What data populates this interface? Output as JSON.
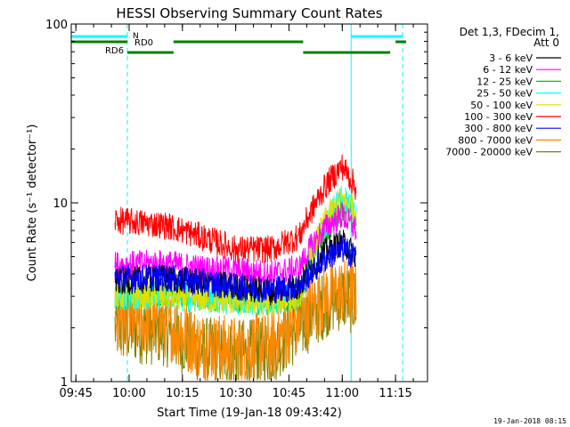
{
  "chart_data": {
    "type": "line",
    "title": "HESSI Observing Summary Count Rates",
    "xlabel": "Start Time (19-Jan-18 09:43:42)",
    "ylabel": "Count Rate (s⁻¹ detector⁻¹)",
    "y_scale": "log",
    "ylim": [
      1,
      100
    ],
    "xlim": [
      "09:43:42",
      "11:24:00"
    ],
    "x_ticks": [
      "09:45",
      "10:00",
      "10:15",
      "10:30",
      "10:45",
      "11:00",
      "11:15"
    ],
    "y_ticks": [
      "1",
      "10",
      "100"
    ],
    "grid": false,
    "legend_placement": "right",
    "legend_title": [
      "Det 1,3, FDecim 1,",
      "Att 0"
    ],
    "series": [
      {
        "name": "3 - 6 keV",
        "color": "#000000",
        "x": [
          "09:56",
          "10:10",
          "10:20",
          "10:30",
          "10:40",
          "10:48",
          "10:52",
          "10:56",
          "11:00",
          "11:04"
        ],
        "y": [
          3.6,
          3.8,
          3.6,
          3.4,
          3.2,
          3.4,
          4.5,
          5.5,
          6.0,
          5.0
        ]
      },
      {
        "name": "6 - 12 keV",
        "color": "#ff00ff",
        "x": [
          "09:56",
          "10:10",
          "10:20",
          "10:30",
          "10:40",
          "10:48",
          "10:52",
          "10:56",
          "11:00",
          "11:04"
        ],
        "y": [
          4.5,
          4.6,
          4.3,
          4.2,
          4.0,
          4.3,
          6.0,
          7.5,
          8.5,
          7.0
        ]
      },
      {
        "name": "12 - 25 keV",
        "color": "#00cc00",
        "x": [
          "09:56",
          "10:10",
          "10:20",
          "10:30",
          "10:40",
          "10:48",
          "10:52",
          "10:56",
          "11:00",
          "11:04"
        ],
        "y": [
          3.0,
          3.2,
          3.0,
          2.9,
          2.8,
          3.0,
          5.0,
          7.0,
          9.5,
          8.0
        ]
      },
      {
        "name": "25 - 50 keV",
        "color": "#00ffff",
        "x": [
          "09:56",
          "10:10",
          "10:20",
          "10:30",
          "10:40",
          "10:48",
          "10:52",
          "10:56",
          "11:00",
          "11:04"
        ],
        "y": [
          3.0,
          3.0,
          2.9,
          2.8,
          2.8,
          3.0,
          5.5,
          8.0,
          11.0,
          9.0
        ]
      },
      {
        "name": "50 - 100 keV",
        "color": "#e0e000",
        "x": [
          "09:56",
          "10:10",
          "10:20",
          "10:30",
          "10:40",
          "10:48",
          "10:52",
          "10:56",
          "11:00",
          "11:04"
        ],
        "y": [
          3.0,
          3.0,
          2.9,
          2.8,
          2.8,
          3.0,
          5.5,
          8.5,
          10.5,
          9.0
        ]
      },
      {
        "name": "100 - 300 keV",
        "color": "#ff0000",
        "x": [
          "09:56",
          "10:10",
          "10:20",
          "10:30",
          "10:40",
          "10:48",
          "10:52",
          "10:56",
          "11:00",
          "11:04"
        ],
        "y": [
          8.0,
          7.5,
          6.5,
          5.5,
          5.5,
          6.5,
          9.5,
          13.0,
          16.0,
          12.0
        ]
      },
      {
        "name": "300 - 800 keV",
        "color": "#0000ff",
        "x": [
          "09:56",
          "10:10",
          "10:20",
          "10:30",
          "10:40",
          "10:48",
          "10:52",
          "10:56",
          "11:00",
          "11:04"
        ],
        "y": [
          3.8,
          3.8,
          3.6,
          3.4,
          3.3,
          3.4,
          4.2,
          5.0,
          5.5,
          5.0
        ]
      },
      {
        "name": "800 - 7000 keV",
        "color": "#ff8800",
        "x": [
          "09:56",
          "10:10",
          "10:20",
          "10:30",
          "10:40",
          "10:48",
          "10:52",
          "10:56",
          "11:00",
          "11:04"
        ],
        "y": [
          2.2,
          2.1,
          1.6,
          1.5,
          1.6,
          2.2,
          2.6,
          3.0,
          3.2,
          3.0
        ]
      },
      {
        "name": "7000 - 20000 keV",
        "color": "#808000",
        "x": [
          "09:56",
          "10:10",
          "10:20",
          "10:30",
          "10:40",
          "10:48",
          "10:52",
          "10:56",
          "11:00",
          "11:04"
        ],
        "y": [
          2.0,
          1.9,
          1.5,
          1.4,
          1.5,
          2.0,
          2.4,
          2.8,
          3.0,
          2.8
        ]
      }
    ],
    "annotations": {
      "night_label": "N",
      "night_intervals": [
        [
          "09:43:42",
          "09:59:30"
        ],
        [
          "11:02:30",
          "11:17:00"
        ]
      ],
      "night_color": "#00ffff",
      "day_intervals_dashed": [
        "09:59:30",
        "11:17:00"
      ],
      "saa_color": "#008000",
      "rd0_label": "RD0",
      "rd6_label": "RD6",
      "rd_bars": [
        [
          "09:43:42",
          "09:59:30"
        ],
        [
          "09:59:30",
          "10:12:30"
        ],
        [
          "10:12:30",
          "10:49:00"
        ],
        [
          "10:49:00",
          "11:13:30"
        ],
        [
          "11:15:00",
          "11:18:00"
        ]
      ],
      "saa_x_intervals": [
        [
          "09:43:42",
          "09:59:30"
        ],
        [
          "09:59:30",
          "10:12:30"
        ],
        [
          "10:12:30",
          "10:49:00"
        ],
        [
          "10:49:00",
          "11:13:30"
        ],
        [
          "11:15:00",
          "11:18:00"
        ]
      ],
      "night_solid_lines_x": [
        "09:43:42",
        "11:02:30"
      ],
      "night_dashed_lines_x": [
        "09:59:30",
        "11:17:00"
      ]
    },
    "footer_date": "19-Jan-2018 08:15"
  }
}
